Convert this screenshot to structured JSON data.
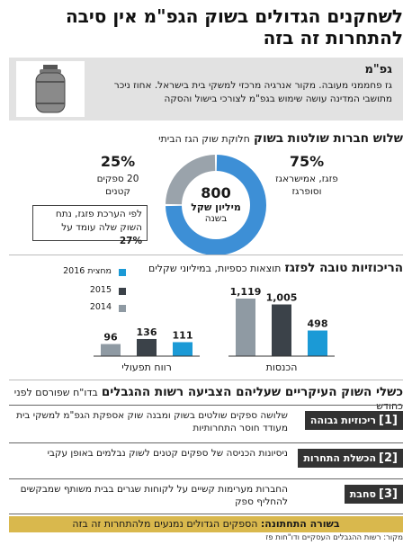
{
  "headline": "לשחקנים הגדולים בשוק הגפ\"מ אין סיבה להתחרות זה בזה",
  "gas_box": {
    "title": "גפ\"מ",
    "description": "גז פחממני מעובה. מקור אנרגיה מרכזי למשקי בית בישראל. אחוז ניכר מתושבי המדינה עושה שימוש בגפ\"מ לצורכי בישול והסקה",
    "icon": "gas-cylinder-icon"
  },
  "market_section": {
    "title_bold": "שלוש חברות שולטות בשוק",
    "title_rest": "חלוקת שוק הגז הביתי",
    "center_value": "800",
    "center_unit": "מיליון שקל",
    "center_sub": "בשנה",
    "big_share_pct": "75%",
    "big_share_label_1": "פזגז, אמישראגז",
    "big_share_label_2": "וסופרגז",
    "small_share_pct": "25%",
    "small_share_label_1": "20 ספקים",
    "small_share_label_2": "קטנים",
    "note": "לפי הערכת פזגז, נתח השוק שלה עומד על",
    "note_pct": "27%"
  },
  "profit_section": {
    "title_bold": "הריכוזיות טובה לפזגז",
    "title_rest": "תוצאות כספיות, במיליוני שקלים"
  },
  "chart_data": [
    {
      "type": "pie",
      "categories": [
        "פזגז, אמישראגז וסופרגז",
        "20 ספקים קטנים"
      ],
      "values": [
        75,
        25
      ],
      "colors": [
        "#3d8fd6",
        "#9aa3ab"
      ]
    },
    {
      "type": "bar",
      "categories": [
        "רווח תפעולי",
        "הכנסות"
      ],
      "series": [
        {
          "name": "2014",
          "values": [
            96,
            1119
          ],
          "color": "#8f9aa3"
        },
        {
          "name": "2015",
          "values": [
            136,
            1005
          ],
          "color": "#3b4249"
        },
        {
          "name": "מחצית 2016",
          "values": [
            111,
            498
          ],
          "color": "#1b9ad6"
        }
      ],
      "legend": "top-left"
    }
  ],
  "bar_labels": {
    "op_2014": "96",
    "op_2015": "136",
    "op_2016": "111",
    "rev_2014": "1,119",
    "rev_2015": "1,005",
    "rev_2016": "498"
  },
  "failures_section": {
    "title_bold": "כשלי השוק העיקריים שעליהם הצביעה רשות ההגבלים",
    "title_rest": "בדו\"ח שפורסם לפני כחודש",
    "rows": [
      {
        "num": "[1]",
        "label": "ריכוזיות גבוהה",
        "text": "שלושה ספקים שולטים בשוק ומבנה שוק אספקת הגפ\"מ למשקי בית מעודד חוסר התחרותיות"
      },
      {
        "num": "[2]",
        "label": "הכשלת התחרות",
        "text": "ניסיונות הכניסה של ספקים קטנים לשוק נבלמים באופן עקבי"
      },
      {
        "num": "[3]",
        "label": "סחבת",
        "text": "החברות מערימות קשיים על לקוחות שגרים בבית משותף שמבקשים להחליף ספק"
      }
    ]
  },
  "bottom_line": {
    "bold": "בשורה התחתונה:",
    "rest": "הספקים הגדולים נמנעים מלהתחרות זה בזה"
  },
  "source": "מקור: רשות ההגבלים העסקיים ודו\"חות פז"
}
